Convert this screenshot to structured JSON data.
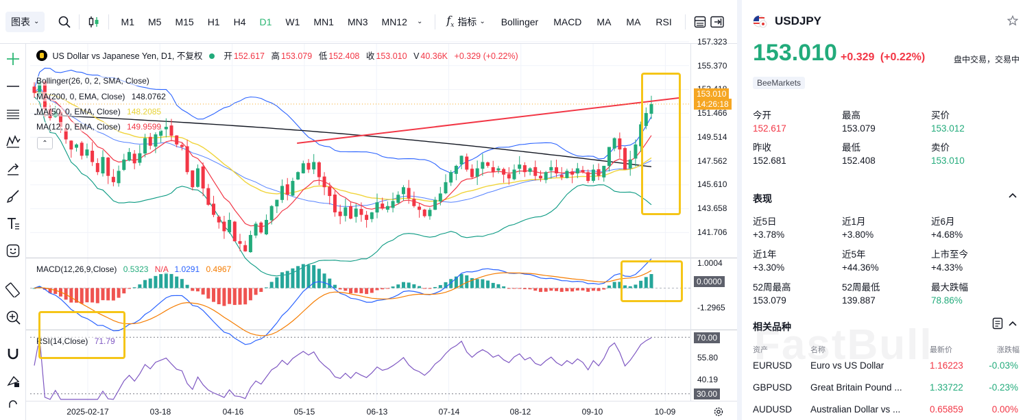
{
  "toolbar": {
    "chart_type": "图表",
    "timeframes": [
      "M1",
      "M5",
      "M15",
      "H1",
      "H4",
      "D1",
      "W1",
      "MN1",
      "MN3",
      "MN12"
    ],
    "active_timeframe": "D1",
    "indicators_label": "指标",
    "indicator_buttons": [
      "Bollinger",
      "MACD",
      "MA",
      "MA",
      "RSI"
    ]
  },
  "legend": {
    "title": "US Dollar vs Japanese Yen, D1, 不复权",
    "open_label": "开",
    "open": "152.617",
    "high_label": "高",
    "high": "153.079",
    "low_label": "低",
    "low": "152.408",
    "close_label": "收",
    "close": "153.010",
    "volume_label": "V",
    "volume": "40.36K",
    "change": "+0.329 (+0.22%)"
  },
  "indicators": {
    "bollinger": "Bollinger(26, 0, 2, SMA, Close)",
    "ma200": "MA(200, 0, EMA, Close)",
    "ma200_value": "148.0762",
    "ma50": "MA(50, 0, EMA, Close)",
    "ma50_value": "148.2085",
    "ma12": "MA(12, 0, EMA, Close)",
    "ma12_value": "149.9599",
    "macd": "MACD(12,26,9,Close)",
    "macd_v1": "0.5323",
    "macd_v2": "N/A",
    "macd_v3": "1.0291",
    "macd_v4": "0.4967",
    "rsi": "RSI(14,Close)",
    "rsi_value": "71.79"
  },
  "price_axis": [
    "157.323",
    "155.370",
    "153.418",
    "151.466",
    "149.514",
    "147.562",
    "145.610",
    "143.658",
    "141.706"
  ],
  "current_price_tag": "153.010",
  "countdown_tag": "14:26:18",
  "macd_axis": [
    "1.0004",
    "0.0000",
    "-1.2965"
  ],
  "rsi_axis": [
    "70.00",
    "55.80",
    "40.19",
    "30.00"
  ],
  "date_axis": [
    "2025-02-17",
    "03-18",
    "04-16",
    "05-15",
    "06-13",
    "07-14",
    "08-12",
    "09-10",
    "10-09"
  ],
  "colors": {
    "up": "#22ab7b",
    "down": "#f23645",
    "accent": "#2bb673",
    "highlight": "#f5c518"
  },
  "chart_data": {
    "type": "candlestick",
    "price_range": [
      140.8,
      157.8
    ],
    "close_series": [
      153.9,
      154.8,
      152.6,
      151.9,
      152.4,
      151.2,
      150.2,
      149.4,
      149.8,
      148.9,
      149.4,
      148.4,
      147.6,
      148.8,
      147.3,
      146.8,
      147.7,
      148.6,
      149.2,
      148.3,
      149.1,
      150.3,
      149.7,
      150.6,
      150.9,
      151.2,
      150.5,
      149.8,
      149.6,
      147.6,
      146.4,
      147.9,
      146.3,
      145.0,
      144.2,
      143.6,
      142.9,
      143.8,
      142.1,
      141.9,
      141.3,
      142.6,
      143.5,
      142.8,
      143.8,
      144.9,
      145.4,
      146.5,
      145.8,
      146.9,
      147.6,
      148.3,
      147.8,
      148.4,
      147.2,
      146.4,
      145.7,
      144.4,
      144.1,
      144.8,
      143.9,
      144.7,
      144.2,
      143.8,
      144.4,
      145.2,
      144.7,
      144.9,
      145.3,
      145.8,
      146.4,
      145.5,
      144.9,
      144.6,
      144.1,
      144.6,
      145.4,
      145.9,
      146.8,
      147.6,
      148.1,
      148.9,
      147.8,
      147.2,
      147.9,
      148.4,
      148.1,
      147.6,
      147.9,
      147.4,
      147.1,
      147.8,
      148.2,
      147.6,
      147.9,
      147.3,
      147.1,
      147.6,
      148.0,
      147.5,
      147.2,
      147.7,
      147.4,
      147.9,
      147.6,
      146.9,
      147.8,
      147.3,
      148.1,
      149.6,
      150.3,
      149.4,
      147.8,
      148.6,
      149.8,
      151.4,
      152.3,
      153.01
    ],
    "trendline": [
      [
        0.405,
        149.9
      ],
      [
        0.985,
        153.5
      ]
    ],
    "macd_range": [
      -1.6,
      1.15
    ],
    "rsi_range": [
      25,
      75
    ]
  },
  "quote": {
    "symbol": "USDJPY",
    "price": "153.010",
    "change": "+0.329",
    "change_pct": "(+0.22%)",
    "status": "盘中交易，交易中",
    "broker": "BeeMarkets",
    "stats": [
      {
        "label": "今开",
        "value": "152.617",
        "tone": "down"
      },
      {
        "label": "最高",
        "value": "153.079",
        "tone": ""
      },
      {
        "label": "买价",
        "value": "153.012",
        "tone": "up"
      },
      {
        "label": "昨收",
        "value": "152.681",
        "tone": ""
      },
      {
        "label": "最低",
        "value": "152.408",
        "tone": ""
      },
      {
        "label": "卖价",
        "value": "153.010",
        "tone": "up"
      }
    ],
    "performance_title": "表现",
    "performance": [
      {
        "label": "近5日",
        "value": "+3.78%",
        "tone": ""
      },
      {
        "label": "近1月",
        "value": "+3.80%",
        "tone": ""
      },
      {
        "label": "近6月",
        "value": "+4.68%",
        "tone": ""
      },
      {
        "label": "近1年",
        "value": "+3.30%",
        "tone": ""
      },
      {
        "label": "近5年",
        "value": "+44.36%",
        "tone": ""
      },
      {
        "label": "上市至今",
        "value": "+4.33%",
        "tone": ""
      },
      {
        "label": "52周最高",
        "value": "153.079",
        "tone": ""
      },
      {
        "label": "52周最低",
        "value": "139.887",
        "tone": ""
      },
      {
        "label": "最大跌幅",
        "value": "78.86%",
        "tone": "up"
      }
    ],
    "related_title": "相关品种",
    "related_headers": [
      "资产",
      "名称",
      "最新价",
      "涨跌幅"
    ],
    "related": [
      {
        "symbol": "EURUSD",
        "name": "Euro vs US Dollar",
        "price": "1.16223",
        "change": "-0.03%",
        "price_tone": "down",
        "change_tone": "up"
      },
      {
        "symbol": "GBPUSD",
        "name": "Great Britain Pound ...",
        "price": "1.33722",
        "change": "-0.23%",
        "price_tone": "up",
        "change_tone": "up"
      },
      {
        "symbol": "AUDUSD",
        "name": "Australian Dollar vs ...",
        "price": "0.65859",
        "change": "0.00%",
        "price_tone": "down",
        "change_tone": "down"
      }
    ],
    "watermark": "FastBull"
  }
}
